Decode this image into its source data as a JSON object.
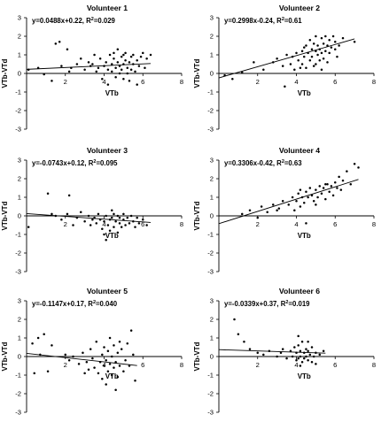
{
  "chart_data": [
    {
      "type": "scatter",
      "title": "Volunteer 1",
      "equation": "y=0.0488x+0.22, R",
      "r2_suffix": "=0.029",
      "xlabel": "VTb",
      "ylabel": "VTb-VTd",
      "xlim": [
        0,
        8
      ],
      "ylim": [
        -3,
        3
      ],
      "xticks": [
        2,
        4,
        6,
        8
      ],
      "yticks": [
        -3,
        -2,
        -1,
        0,
        1,
        2,
        3
      ],
      "fit": {
        "slope": 0.0488,
        "intercept": 0.22,
        "x_range": [
          0,
          6.4
        ]
      },
      "points": [
        [
          0.1,
          0.2
        ],
        [
          0.6,
          0.3
        ],
        [
          0.9,
          -0.05
        ],
        [
          1.3,
          -0.4
        ],
        [
          1.5,
          1.6
        ],
        [
          1.7,
          1.7
        ],
        [
          1.8,
          0.4
        ],
        [
          2.1,
          1.3
        ],
        [
          2.2,
          0.1
        ],
        [
          2.3,
          0.3
        ],
        [
          2.6,
          0.5
        ],
        [
          2.8,
          0.8
        ],
        [
          3.0,
          0.2
        ],
        [
          3.2,
          0.6
        ],
        [
          3.3,
          0.4
        ],
        [
          3.5,
          1.0
        ],
        [
          3.6,
          0.1
        ],
        [
          3.7,
          0.3
        ],
        [
          3.8,
          0.8
        ],
        [
          3.9,
          -0.3
        ],
        [
          4.0,
          0.4
        ],
        [
          4.1,
          0.6
        ],
        [
          4.2,
          0.2
        ],
        [
          4.2,
          -0.6
        ],
        [
          4.3,
          1.0
        ],
        [
          4.4,
          0.5
        ],
        [
          4.4,
          0.1
        ],
        [
          4.5,
          0.8
        ],
        [
          4.6,
          0.3
        ],
        [
          4.6,
          -0.2
        ],
        [
          4.7,
          0.6
        ],
        [
          4.7,
          1.3
        ],
        [
          4.8,
          0.4
        ],
        [
          4.8,
          0.0
        ],
        [
          4.9,
          0.9
        ],
        [
          4.9,
          0.2
        ],
        [
          5.0,
          0.5
        ],
        [
          5.0,
          -0.3
        ],
        [
          5.1,
          0.7
        ],
        [
          5.1,
          1.1
        ],
        [
          5.2,
          0.3
        ],
        [
          5.2,
          0.0
        ],
        [
          5.3,
          0.6
        ],
        [
          5.3,
          -0.4
        ],
        [
          5.4,
          0.9
        ],
        [
          5.4,
          0.2
        ],
        [
          5.5,
          0.5
        ],
        [
          5.5,
          1.0
        ],
        [
          5.6,
          0.1
        ],
        [
          5.7,
          0.7
        ],
        [
          5.7,
          -0.6
        ],
        [
          5.8,
          0.4
        ],
        [
          5.9,
          0.9
        ],
        [
          6.0,
          1.1
        ],
        [
          6.1,
          0.3
        ],
        [
          6.2,
          0.8
        ],
        [
          6.4,
          1.0
        ],
        [
          4.5,
          1.1
        ],
        [
          5.0,
          1.0
        ],
        [
          3.4,
          0.5
        ]
      ]
    },
    {
      "type": "scatter",
      "title": "Volunteer 2",
      "equation": "y=0.2998x-0.24, R",
      "r2_suffix": "=0.61",
      "xlabel": "VTb",
      "ylabel": "VTb-VTd",
      "xlim": [
        0,
        8
      ],
      "ylim": [
        -3,
        3
      ],
      "xticks": [
        2,
        4,
        6,
        8
      ],
      "yticks": [
        -3,
        -2,
        -1,
        0,
        1,
        2,
        3
      ],
      "fit": {
        "slope": 0.2998,
        "intercept": -0.24,
        "x_range": [
          0,
          7
        ]
      },
      "points": [
        [
          0.3,
          -0.1
        ],
        [
          0.7,
          -0.3
        ],
        [
          1.2,
          0.05
        ],
        [
          1.8,
          0.6
        ],
        [
          2.3,
          0.2
        ],
        [
          2.8,
          0.6
        ],
        [
          3.0,
          0.8
        ],
        [
          3.3,
          0.4
        ],
        [
          3.4,
          -0.7
        ],
        [
          3.5,
          1.0
        ],
        [
          3.7,
          0.5
        ],
        [
          3.8,
          0.9
        ],
        [
          3.9,
          0.2
        ],
        [
          4.0,
          1.1
        ],
        [
          4.1,
          0.7
        ],
        [
          4.2,
          0.3
        ],
        [
          4.3,
          1.2
        ],
        [
          4.3,
          0.5
        ],
        [
          4.4,
          0.9
        ],
        [
          4.5,
          1.5
        ],
        [
          4.5,
          0.3
        ],
        [
          4.6,
          1.1
        ],
        [
          4.7,
          0.7
        ],
        [
          4.7,
          1.8
        ],
        [
          4.8,
          1.3
        ],
        [
          4.8,
          0.9
        ],
        [
          4.9,
          1.6
        ],
        [
          4.9,
          0.4
        ],
        [
          5.0,
          1.2
        ],
        [
          5.0,
          2.0
        ],
        [
          5.1,
          1.0
        ],
        [
          5.1,
          1.5
        ],
        [
          5.2,
          0.7
        ],
        [
          5.2,
          1.3
        ],
        [
          5.3,
          1.9
        ],
        [
          5.3,
          1.1
        ],
        [
          5.4,
          1.6
        ],
        [
          5.4,
          0.8
        ],
        [
          5.5,
          1.2
        ],
        [
          5.5,
          2.0
        ],
        [
          5.6,
          1.5
        ],
        [
          5.6,
          0.6
        ],
        [
          5.7,
          1.8
        ],
        [
          5.7,
          1.1
        ],
        [
          5.8,
          1.4
        ],
        [
          5.9,
          2.0
        ],
        [
          6.0,
          1.3
        ],
        [
          6.0,
          1.7
        ],
        [
          6.1,
          0.9
        ],
        [
          6.2,
          1.5
        ],
        [
          6.4,
          1.9
        ],
        [
          7.0,
          1.7
        ],
        [
          5.0,
          0.5
        ],
        [
          4.4,
          1.4
        ],
        [
          5.3,
          0.2
        ]
      ]
    },
    {
      "type": "scatter",
      "title": "Volunteer 3",
      "equation": "y=-0.0743x+0.12, R",
      "r2_suffix": "=0.095",
      "xlabel": "VTb",
      "ylabel": "VTb-VTd",
      "xlim": [
        0,
        8
      ],
      "ylim": [
        -3,
        3
      ],
      "xticks": [
        2,
        4,
        6,
        8
      ],
      "yticks": [
        -3,
        -2,
        -1,
        0,
        1,
        2,
        3
      ],
      "fit": {
        "slope": -0.0743,
        "intercept": 0.12,
        "x_range": [
          0,
          6.4
        ]
      },
      "points": [
        [
          0.1,
          -0.6
        ],
        [
          1.1,
          1.2
        ],
        [
          1.3,
          0.1
        ],
        [
          1.5,
          0.0
        ],
        [
          1.8,
          -0.2
        ],
        [
          2.1,
          0.1
        ],
        [
          2.2,
          1.1
        ],
        [
          2.4,
          -0.5
        ],
        [
          2.6,
          -0.1
        ],
        [
          2.8,
          0.2
        ],
        [
          3.0,
          -0.3
        ],
        [
          3.2,
          0.0
        ],
        [
          3.3,
          -0.5
        ],
        [
          3.5,
          -0.1
        ],
        [
          3.6,
          -0.4
        ],
        [
          3.7,
          0.1
        ],
        [
          3.8,
          -0.2
        ],
        [
          3.9,
          -0.7
        ],
        [
          4.0,
          -1.0
        ],
        [
          4.0,
          -0.3
        ],
        [
          4.1,
          0.0
        ],
        [
          4.2,
          -0.5
        ],
        [
          4.3,
          -0.2
        ],
        [
          4.3,
          -0.8
        ],
        [
          4.4,
          -0.1
        ],
        [
          4.5,
          -0.6
        ],
        [
          4.5,
          0.1
        ],
        [
          4.6,
          -0.3
        ],
        [
          4.7,
          -0.9
        ],
        [
          4.7,
          0.0
        ],
        [
          4.8,
          -0.4
        ],
        [
          4.8,
          -0.1
        ],
        [
          4.9,
          -0.6
        ],
        [
          5.0,
          -0.2
        ],
        [
          5.0,
          0.1
        ],
        [
          5.1,
          -0.5
        ],
        [
          5.2,
          -0.1
        ],
        [
          5.3,
          -0.4
        ],
        [
          5.4,
          0.0
        ],
        [
          5.5,
          -0.3
        ],
        [
          5.6,
          -0.6
        ],
        [
          5.7,
          -0.1
        ],
        [
          5.8,
          -0.4
        ],
        [
          6.0,
          -0.2
        ],
        [
          6.2,
          -0.5
        ],
        [
          4.1,
          -1.3
        ],
        [
          4.4,
          0.3
        ],
        [
          3.4,
          -0.2
        ]
      ]
    },
    {
      "type": "scatter",
      "title": "Volunteer 4",
      "equation": "y=0.3306x-0.42, R",
      "r2_suffix": "=0.63",
      "xlabel": "VTb",
      "ylabel": "VTb-VTd",
      "xlim": [
        0,
        8
      ],
      "ylim": [
        -3,
        3
      ],
      "xticks": [
        2,
        4,
        6,
        8
      ],
      "yticks": [
        -3,
        -2,
        -1,
        0,
        1,
        2,
        3
      ],
      "fit": {
        "slope": 0.3306,
        "intercept": -0.42,
        "x_range": [
          0,
          7.2
        ]
      },
      "points": [
        [
          1.2,
          0.1
        ],
        [
          1.6,
          0.3
        ],
        [
          2.0,
          -0.1
        ],
        [
          2.2,
          0.5
        ],
        [
          2.5,
          0.2
        ],
        [
          2.8,
          0.6
        ],
        [
          3.1,
          0.4
        ],
        [
          3.3,
          0.8
        ],
        [
          3.6,
          0.6
        ],
        [
          3.8,
          1.0
        ],
        [
          3.9,
          0.3
        ],
        [
          4.0,
          0.8
        ],
        [
          4.1,
          1.2
        ],
        [
          4.2,
          0.5
        ],
        [
          4.3,
          1.0
        ],
        [
          4.4,
          0.7
        ],
        [
          4.5,
          1.3
        ],
        [
          4.5,
          -0.4
        ],
        [
          4.6,
          1.0
        ],
        [
          4.7,
          1.5
        ],
        [
          4.8,
          1.1
        ],
        [
          4.9,
          0.8
        ],
        [
          5.0,
          1.4
        ],
        [
          5.1,
          1.0
        ],
        [
          5.2,
          1.6
        ],
        [
          5.3,
          1.2
        ],
        [
          5.4,
          1.5
        ],
        [
          5.5,
          0.9
        ],
        [
          5.6,
          1.7
        ],
        [
          5.7,
          1.3
        ],
        [
          5.8,
          1.6
        ],
        [
          5.9,
          1.1
        ],
        [
          6.0,
          1.8
        ],
        [
          6.1,
          1.5
        ],
        [
          6.2,
          2.1
        ],
        [
          6.3,
          1.4
        ],
        [
          6.4,
          1.9
        ],
        [
          6.6,
          2.4
        ],
        [
          6.8,
          1.7
        ],
        [
          7.0,
          2.8
        ],
        [
          7.2,
          2.6
        ],
        [
          5.0,
          0.6
        ],
        [
          4.2,
          1.4
        ],
        [
          5.5,
          1.7
        ],
        [
          3.0,
          0.3
        ]
      ]
    },
    {
      "type": "scatter",
      "title": "Volunteer 5",
      "equation": "y=-0.1147x+0.17, R",
      "r2_suffix": "=0.040",
      "xlabel": "VTb",
      "ylabel": "VTb-VTd",
      "xlim": [
        0,
        8
      ],
      "ylim": [
        -3,
        3
      ],
      "xticks": [
        2,
        4,
        6,
        8
      ],
      "yticks": [
        -3,
        -2,
        -1,
        0,
        1,
        2,
        3
      ],
      "fit": {
        "slope": -0.1147,
        "intercept": 0.17,
        "x_range": [
          0,
          5.7
        ]
      },
      "points": [
        [
          0.3,
          0.7
        ],
        [
          0.4,
          -0.9
        ],
        [
          0.6,
          1.0
        ],
        [
          0.7,
          0.1
        ],
        [
          0.9,
          1.2
        ],
        [
          1.1,
          -0.8
        ],
        [
          1.3,
          0.6
        ],
        [
          2.0,
          0.1
        ],
        [
          2.2,
          -0.2
        ],
        [
          2.4,
          0.0
        ],
        [
          2.7,
          -0.4
        ],
        [
          2.9,
          0.2
        ],
        [
          3.1,
          -0.3
        ],
        [
          3.2,
          -0.7
        ],
        [
          3.3,
          0.4
        ],
        [
          3.4,
          -0.1
        ],
        [
          3.5,
          -0.6
        ],
        [
          3.6,
          0.8
        ],
        [
          3.7,
          -0.9
        ],
        [
          3.8,
          -0.3
        ],
        [
          3.9,
          0.1
        ],
        [
          3.9,
          -1.2
        ],
        [
          4.0,
          -0.5
        ],
        [
          4.0,
          0.5
        ],
        [
          4.1,
          -0.2
        ],
        [
          4.1,
          -1.5
        ],
        [
          4.2,
          0.3
        ],
        [
          4.2,
          -0.8
        ],
        [
          4.3,
          -0.4
        ],
        [
          4.3,
          1.0
        ],
        [
          4.4,
          -1.0
        ],
        [
          4.4,
          0.0
        ],
        [
          4.5,
          -0.6
        ],
        [
          4.5,
          0.6
        ],
        [
          4.6,
          -1.8
        ],
        [
          4.6,
          -0.3
        ],
        [
          4.7,
          0.2
        ],
        [
          4.7,
          -1.1
        ],
        [
          4.8,
          -0.5
        ],
        [
          4.9,
          0.4
        ],
        [
          5.0,
          -0.8
        ],
        [
          5.1,
          -0.2
        ],
        [
          5.2,
          0.7
        ],
        [
          5.3,
          -0.5
        ],
        [
          5.4,
          1.4
        ],
        [
          5.5,
          0.1
        ],
        [
          5.6,
          -1.3
        ],
        [
          3.0,
          -0.9
        ],
        [
          4.8,
          0.8
        ]
      ]
    },
    {
      "type": "scatter",
      "title": "Volunteer 6",
      "equation": "y=-0.0339x+0.37, R",
      "r2_suffix": "=0.019",
      "xlabel": "VTb",
      "ylabel": "VTb-VTd",
      "xlim": [
        0,
        8
      ],
      "ylim": [
        -3,
        3
      ],
      "xticks": [
        2,
        4,
        6,
        8
      ],
      "yticks": [
        -3,
        -2,
        -1,
        0,
        1,
        2,
        3
      ],
      "fit": {
        "slope": -0.0339,
        "intercept": 0.37,
        "x_range": [
          0,
          5.5
        ]
      },
      "points": [
        [
          0.8,
          2.0
        ],
        [
          1.0,
          1.2
        ],
        [
          1.3,
          0.8
        ],
        [
          1.6,
          0.4
        ],
        [
          2.0,
          0.2
        ],
        [
          2.3,
          0.1
        ],
        [
          2.6,
          0.3
        ],
        [
          3.0,
          0.0
        ],
        [
          3.2,
          0.2
        ],
        [
          3.5,
          -0.1
        ],
        [
          3.7,
          0.3
        ],
        [
          3.8,
          0.0
        ],
        [
          3.9,
          0.5
        ],
        [
          4.0,
          -0.2
        ],
        [
          4.0,
          0.2
        ],
        [
          4.1,
          0.6
        ],
        [
          4.1,
          -0.1
        ],
        [
          4.2,
          0.3
        ],
        [
          4.2,
          0.0
        ],
        [
          4.3,
          0.8
        ],
        [
          4.3,
          -0.3
        ],
        [
          4.4,
          0.2
        ],
        [
          4.4,
          -0.1
        ],
        [
          4.5,
          0.4
        ],
        [
          4.5,
          0.0
        ],
        [
          4.6,
          -0.2
        ],
        [
          4.6,
          0.3
        ],
        [
          4.7,
          0.1
        ],
        [
          4.8,
          -0.3
        ],
        [
          4.8,
          0.5
        ],
        [
          4.9,
          0.0
        ],
        [
          5.0,
          0.2
        ],
        [
          5.0,
          -0.4
        ],
        [
          5.2,
          0.1
        ],
        [
          5.4,
          0.3
        ],
        [
          4.1,
          1.1
        ],
        [
          3.3,
          0.4
        ],
        [
          4.6,
          0.8
        ],
        [
          4.2,
          -0.5
        ]
      ]
    }
  ]
}
